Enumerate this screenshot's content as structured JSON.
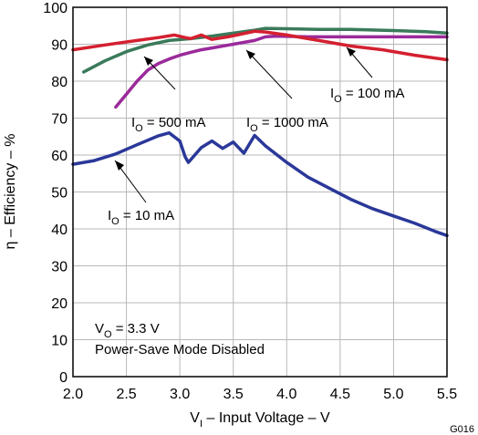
{
  "chart_data": {
    "type": "line",
    "xlabel_parts": {
      "main": "V",
      "sub": "I",
      "rest": " – Input Voltage – V"
    },
    "ylabel": "η – Efficiency – %",
    "xlim": [
      2.0,
      5.5
    ],
    "ylim": [
      0,
      100
    ],
    "xticks": [
      "2.0",
      "2.5",
      "3.0",
      "3.5",
      "4.0",
      "4.5",
      "5.0",
      "5.5"
    ],
    "yticks": [
      "0",
      "10",
      "20",
      "30",
      "40",
      "50",
      "60",
      "70",
      "80",
      "90",
      "100"
    ],
    "grid": true,
    "series": [
      {
        "name": "IO = 500 mA",
        "label_parts": {
          "main": "I",
          "sub": "O",
          "rest": " = 500 mA"
        },
        "color": "#3a7a5a",
        "points": [
          [
            2.1,
            82.5
          ],
          [
            2.3,
            85.5
          ],
          [
            2.5,
            88
          ],
          [
            2.7,
            89.8
          ],
          [
            2.9,
            91
          ],
          [
            3.1,
            91.5
          ],
          [
            3.3,
            92.2
          ],
          [
            3.5,
            93
          ],
          [
            3.7,
            93.8
          ],
          [
            3.8,
            94.3
          ],
          [
            4.0,
            94.2
          ],
          [
            4.3,
            94
          ],
          [
            4.6,
            94
          ],
          [
            5.0,
            93.7
          ],
          [
            5.3,
            93.4
          ],
          [
            5.5,
            93
          ]
        ]
      },
      {
        "name": "IO = 1000 mA",
        "label_parts": {
          "main": "I",
          "sub": "O",
          "rest": " = 1000 mA"
        },
        "color": "#9b2a9b",
        "points": [
          [
            2.4,
            73
          ],
          [
            2.5,
            76.5
          ],
          [
            2.6,
            80
          ],
          [
            2.7,
            83
          ],
          [
            2.8,
            84.8
          ],
          [
            2.9,
            86
          ],
          [
            3.0,
            87
          ],
          [
            3.1,
            87.8
          ],
          [
            3.2,
            88.5
          ],
          [
            3.3,
            89
          ],
          [
            3.5,
            90
          ],
          [
            3.7,
            91
          ],
          [
            3.8,
            92
          ],
          [
            3.9,
            92.2
          ],
          [
            4.2,
            92
          ],
          [
            4.5,
            92
          ],
          [
            5.0,
            92
          ],
          [
            5.5,
            92
          ]
        ]
      },
      {
        "name": "IO = 100 mA",
        "label_parts": {
          "main": "I",
          "sub": "O",
          "rest": " = 100 mA"
        },
        "color": "#d42030",
        "points": [
          [
            2.0,
            88.5
          ],
          [
            2.3,
            89.8
          ],
          [
            2.6,
            91
          ],
          [
            2.8,
            91.8
          ],
          [
            2.95,
            92.5
          ],
          [
            3.05,
            91.8
          ],
          [
            3.1,
            91.5
          ],
          [
            3.2,
            92.5
          ],
          [
            3.3,
            91.3
          ],
          [
            3.45,
            92
          ],
          [
            3.7,
            93.5
          ],
          [
            3.8,
            93.3
          ],
          [
            4.0,
            92.5
          ],
          [
            4.3,
            91
          ],
          [
            4.6,
            89.5
          ],
          [
            4.9,
            88.5
          ],
          [
            5.2,
            87
          ],
          [
            5.5,
            85.8
          ]
        ]
      },
      {
        "name": "IO = 10 mA",
        "label_parts": {
          "main": "I",
          "sub": "O",
          "rest": " = 10 mA"
        },
        "color": "#2a3899",
        "points": [
          [
            2.0,
            57.5
          ],
          [
            2.2,
            58.5
          ],
          [
            2.4,
            60.3
          ],
          [
            2.6,
            62.8
          ],
          [
            2.8,
            65.2
          ],
          [
            2.9,
            66
          ],
          [
            3.0,
            63.8
          ],
          [
            3.05,
            59.5
          ],
          [
            3.08,
            58
          ],
          [
            3.2,
            62
          ],
          [
            3.3,
            63.8
          ],
          [
            3.4,
            61.8
          ],
          [
            3.5,
            63.5
          ],
          [
            3.6,
            60.5
          ],
          [
            3.7,
            65.3
          ],
          [
            3.8,
            62.5
          ],
          [
            4.0,
            58
          ],
          [
            4.2,
            54
          ],
          [
            4.4,
            51
          ],
          [
            4.6,
            48
          ],
          [
            4.8,
            45.5
          ],
          [
            5.0,
            43.5
          ],
          [
            5.2,
            41.5
          ],
          [
            5.4,
            39.2
          ],
          [
            5.5,
            38.2
          ]
        ]
      }
    ],
    "annotations": {
      "vo_parts": {
        "main": "V",
        "sub": "O",
        "rest": " = 3.3 V"
      },
      "mode": "Power-Save Mode Disabled",
      "figure_id": "G016"
    }
  }
}
